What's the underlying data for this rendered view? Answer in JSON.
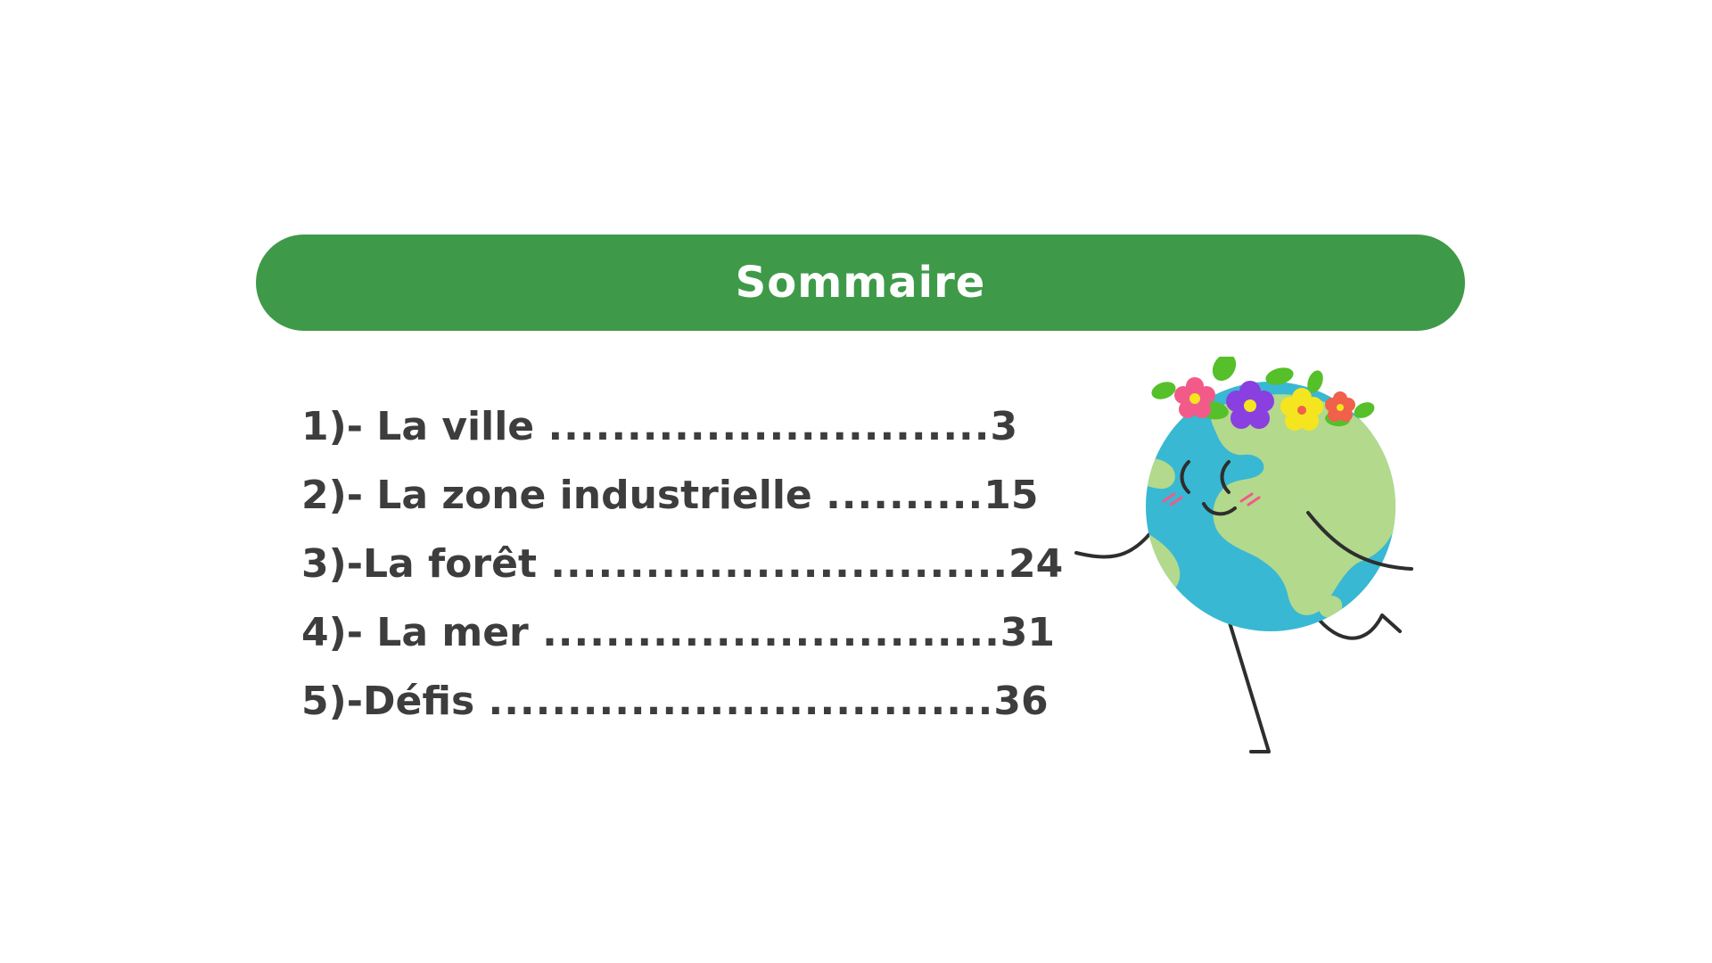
{
  "header": {
    "title": "Sommaire"
  },
  "toc": {
    "items": [
      {
        "label": "1)- La ville ",
        "leader": "............................",
        "page": "3"
      },
      {
        "label": "2)- La zone industrielle ",
        "leader": "..........",
        "page": "15"
      },
      {
        "label": "3)-La forêt ",
        "leader": ".............................",
        "page": "24"
      },
      {
        "label": "4)- La mer ",
        "leader": ".............................",
        "page": "31"
      },
      {
        "label": "5)-Défis ",
        "leader": "................................",
        "page": "36"
      }
    ]
  },
  "illustration": {
    "icon": "earth-mascot-icon",
    "colors": {
      "ocean": "#38b8d3",
      "land": "#b3d98c",
      "line": "#2e2e2e",
      "flower_pink": "#f25a8a",
      "flower_purple": "#8a3fe0",
      "flower_yellow": "#f5e51f",
      "flower_red": "#f0604a",
      "leaf": "#55c02a"
    }
  },
  "colors": {
    "accent": "#3e9a48",
    "text": "#3d3d3d",
    "background": "#ffffff"
  }
}
